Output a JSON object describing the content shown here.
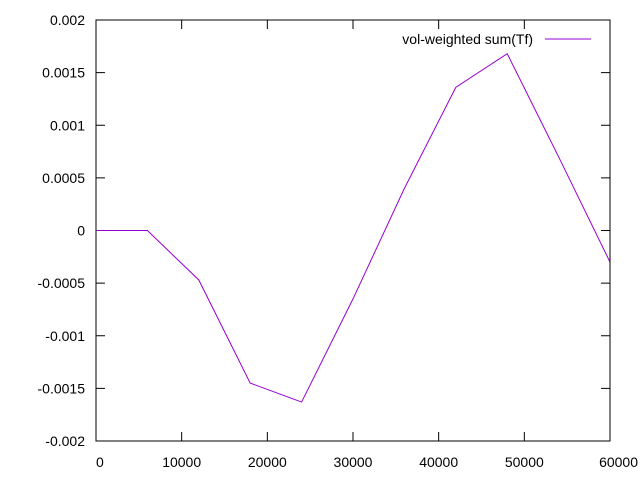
{
  "chart_data": {
    "type": "line",
    "title": "",
    "xlabel": "",
    "ylabel": "",
    "xlim": [
      0,
      60000
    ],
    "ylim": [
      -0.002,
      0.002
    ],
    "grid": false,
    "legend_position": "top-right",
    "x_ticks": [
      0,
      10000,
      20000,
      30000,
      40000,
      50000,
      60000
    ],
    "x_tick_labels": [
      "0",
      "10000",
      "20000",
      "30000",
      "40000",
      "50000",
      "60000"
    ],
    "y_ticks": [
      -0.002,
      -0.0015,
      -0.001,
      -0.0005,
      0,
      0.0005,
      0.001,
      0.0015,
      0.002
    ],
    "y_tick_labels": [
      "-0.002",
      "-0.0015",
      "-0.001",
      "-0.0005",
      "0",
      "0.0005",
      "0.001",
      "0.0015",
      "0.002"
    ],
    "series": [
      {
        "name": "vol-weighted sum(Tf)",
        "color": "#9400d3",
        "x": [
          0,
          6000,
          12000,
          18000,
          24000,
          30000,
          36000,
          42000,
          48000,
          54000,
          60000
        ],
        "y": [
          0,
          0,
          -0.00047,
          -0.00145,
          -0.00163,
          -0.00065,
          0.0004,
          0.00136,
          0.00168,
          0.0007,
          -0.0003
        ]
      }
    ]
  }
}
